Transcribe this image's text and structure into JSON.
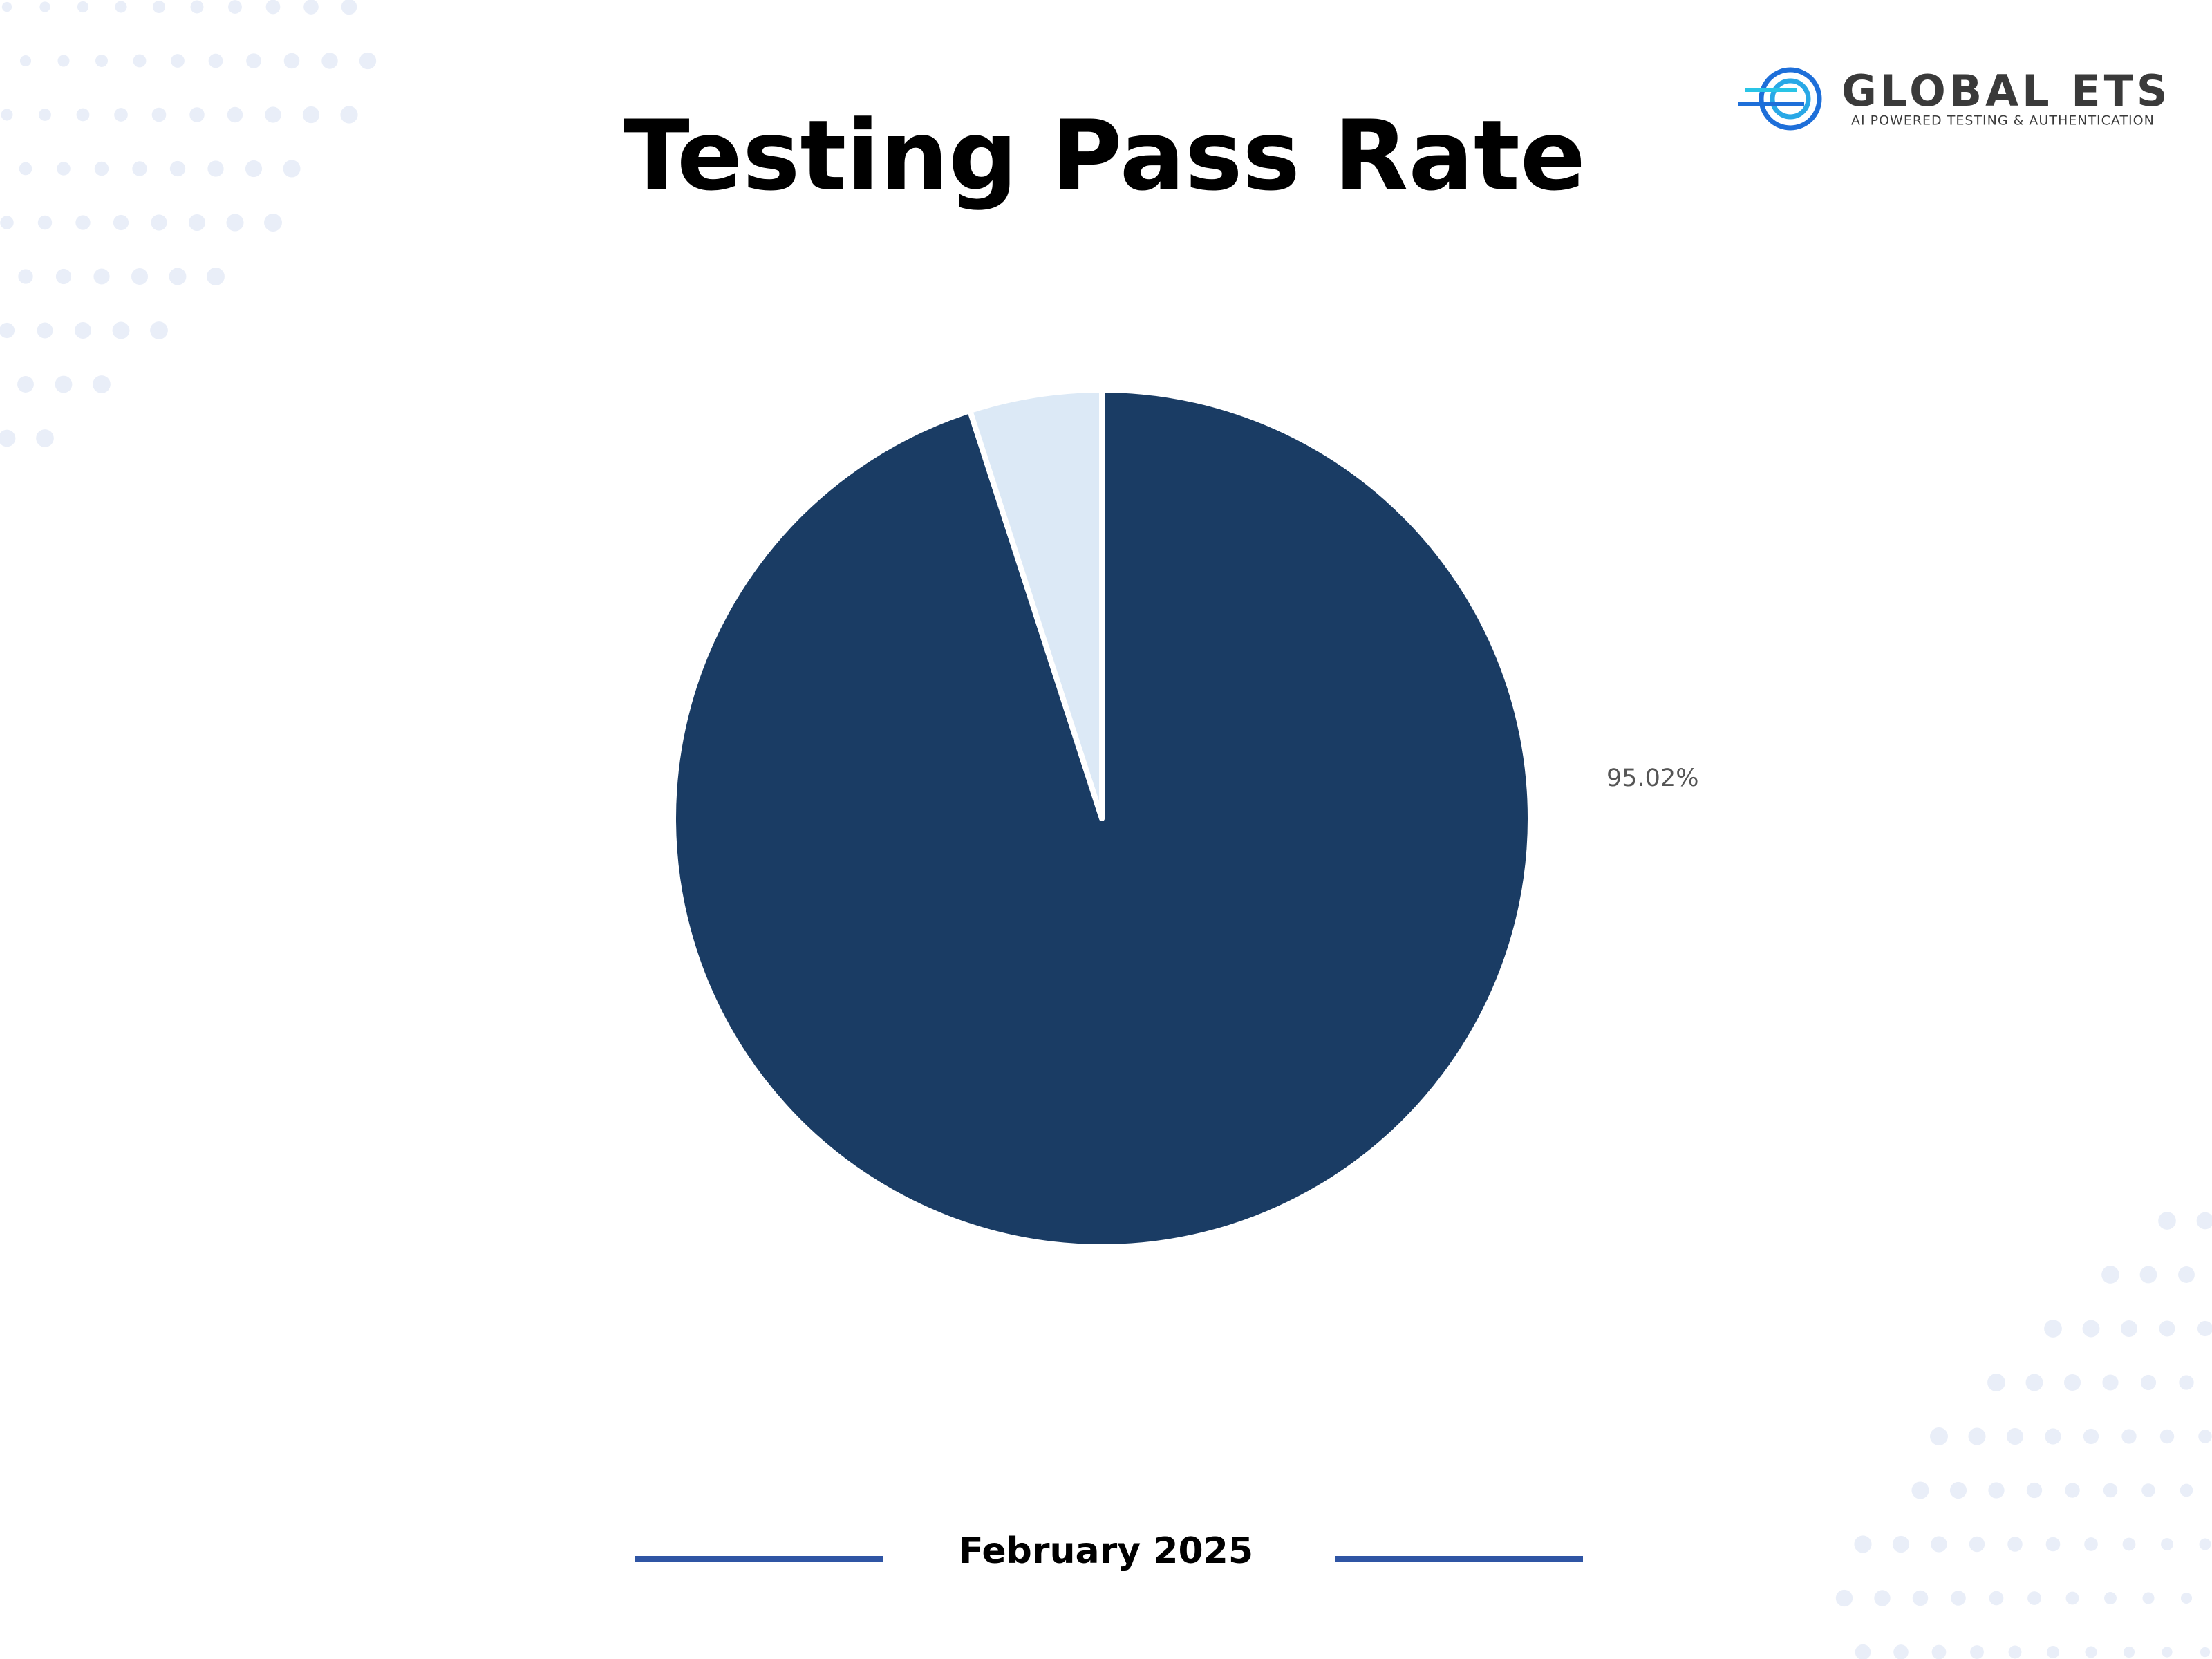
{
  "brand": {
    "name": "GLOBAL ETS",
    "tagline": "AI POWERED TESTING & AUTHENTICATION"
  },
  "chart_data": {
    "type": "pie",
    "title": "Testing Pass Rate",
    "categories": [
      null,
      null
    ],
    "values": [
      95.02,
      4.98
    ],
    "value_labels": [
      "95.02%",
      null
    ],
    "colors": [
      "#1a3c64",
      "#dce9f6"
    ],
    "start_angle": 0,
    "direction": "clockwise"
  },
  "footer": {
    "period": "February 2025"
  }
}
